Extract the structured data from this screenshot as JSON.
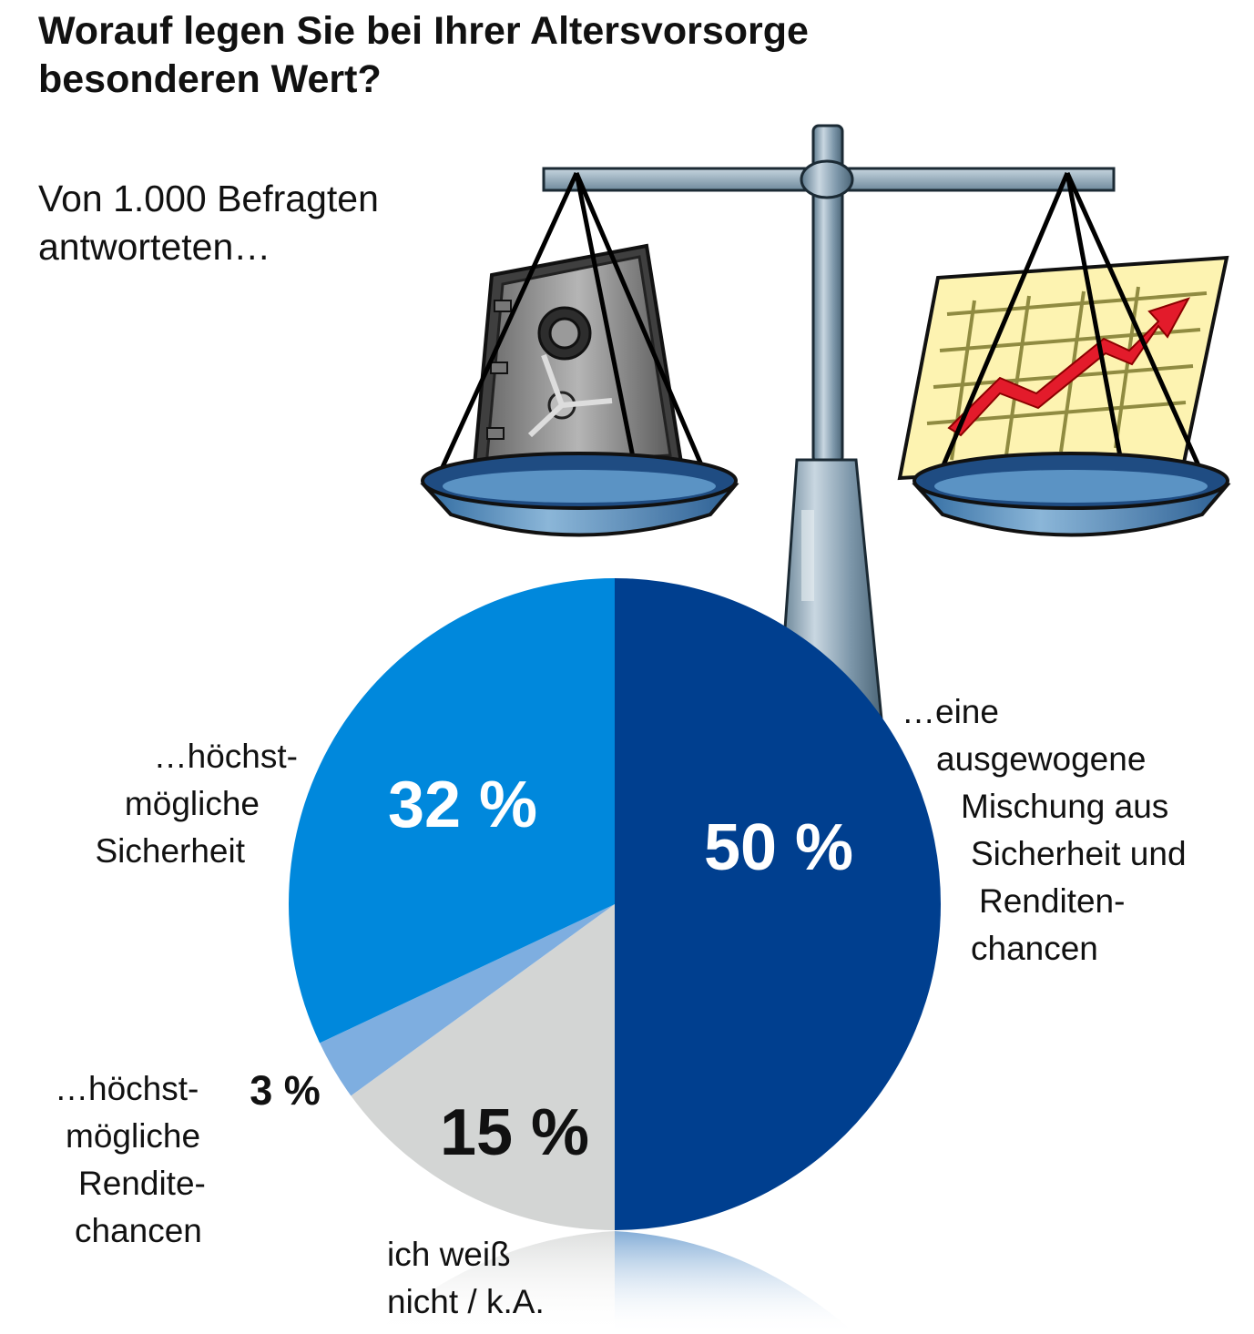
{
  "title_line1": "Worauf legen Sie bei Ihrer Altersvorsorge",
  "title_line2": "besonderen Wert?",
  "subtitle_line1": "Von 1.000 Befragten",
  "subtitle_line2": "antworteten…",
  "labels": {
    "sicherheit": [
      "…höchst-",
      "mögliche",
      "Sicherheit"
    ],
    "mischung": [
      "…eine",
      "ausgewogene",
      "Mischung aus",
      "Sicherheit und",
      "Renditen-",
      "chancen"
    ],
    "rendite": [
      "…höchst-",
      "mögliche",
      "Rendite-",
      "chancen"
    ],
    "weissnicht": [
      "ich weiß",
      "nicht / k.A."
    ]
  },
  "chart_data": {
    "type": "pie",
    "title": "Worauf legen Sie bei Ihrer Altersvorsorge besonderen Wert?",
    "subtitle": "Von 1.000 Befragten antworteten…",
    "unit": "%",
    "slices": [
      {
        "name": "…eine ausgewogene Mischung aus Sicherheit und Renditenchancen",
        "value": 50,
        "label": "50 %",
        "color": "#003f8f"
      },
      {
        "name": "ich weiß nicht / k.A.",
        "value": 15,
        "label": "15 %",
        "color": "#d3d5d4"
      },
      {
        "name": "…höchstmögliche Renditechancen",
        "value": 3,
        "label": "3 %",
        "color": "#7eaee0"
      },
      {
        "name": "…höchstmögliche Sicherheit",
        "value": 32,
        "label": "32 %",
        "color": "#0088dc"
      }
    ]
  },
  "colors": {
    "pan_blue": "#4e89b9",
    "arrow_red": "#e31b2b",
    "chart_paper": "#fdf3b1",
    "safe_gray": "#8a8a8a"
  },
  "illustration": {
    "name": "balance-scale-icon",
    "left_item": "safe-icon",
    "right_item": "rising-chart-icon"
  }
}
